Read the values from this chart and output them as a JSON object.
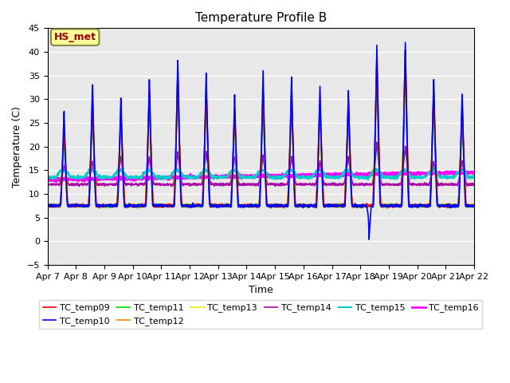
{
  "title": "Temperature Profile B",
  "xlabel": "Time",
  "ylabel": "Temperature (C)",
  "ylim": [
    -5,
    45
  ],
  "annotation": "HS_met",
  "bg_color": "#e8e8e8",
  "grid_color": "white",
  "series": {
    "TC_temp09": {
      "color": "#ff0000",
      "lw": 1.2
    },
    "TC_temp10": {
      "color": "#0000ff",
      "lw": 1.2
    },
    "TC_temp11": {
      "color": "#00dd00",
      "lw": 1.2
    },
    "TC_temp12": {
      "color": "#ff8800",
      "lw": 1.2
    },
    "TC_temp13": {
      "color": "#eeee00",
      "lw": 1.2
    },
    "TC_temp14": {
      "color": "#aa00aa",
      "lw": 1.2
    },
    "TC_temp15": {
      "color": "#00cccc",
      "lw": 1.5
    },
    "TC_temp16": {
      "color": "#ff00ff",
      "lw": 2.0
    }
  },
  "x_tick_labels": [
    "Apr 7",
    "Apr 8",
    "Apr 9",
    "Apr 10",
    "Apr 11",
    "Apr 12",
    "Apr 13",
    "Apr 14",
    "Apr 15",
    "Apr 16",
    "Apr 17",
    "Apr 18",
    "Apr 19",
    "Apr 20",
    "Apr 21",
    "Apr 22"
  ],
  "n_days": 15,
  "pts_per_day": 144
}
